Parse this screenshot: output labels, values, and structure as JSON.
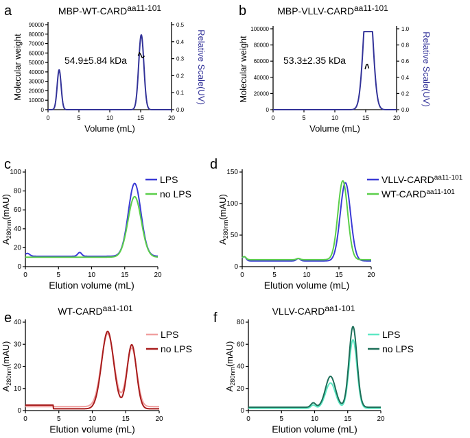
{
  "chart_data": [
    {
      "panel": "a",
      "type": "line",
      "title": "MBP-WT-CARD",
      "title_sup": "aa11-101",
      "xlabel": "Volume (mL)",
      "ylabel": "Molecular weight",
      "ylabel_right": "Relative Scale(UV)",
      "xlim": [
        0,
        20
      ],
      "ylim": [
        0,
        90000
      ],
      "ylim_right": [
        0,
        0.5
      ],
      "xticks": [
        0,
        5,
        10,
        15,
        20
      ],
      "yticks": [
        0,
        10000,
        20000,
        30000,
        40000,
        50000,
        60000,
        70000,
        80000,
        90000
      ],
      "yticks_right": [
        0.0,
        0.1,
        0.2,
        0.3,
        0.4,
        0.5
      ],
      "yticks_right_labels": [
        "0.0",
        "0.1",
        "0.2",
        "0.3",
        "0.4",
        "0.5"
      ],
      "annotation": "54.9±5.84 kDa",
      "series": [
        {
          "name": "UV",
          "color": "#333399",
          "axis": "right",
          "peaks": [
            {
              "center": 1.8,
              "height": 0.234,
              "width": 0.32
            },
            {
              "center": 15.1,
              "height": 0.44,
              "width": 0.42
            }
          ]
        },
        {
          "name": "MW",
          "color": "#000000",
          "axis": "left",
          "x": [
            14.6,
            14.8,
            15.0,
            15.2,
            15.4,
            15.6
          ],
          "y": [
            57000,
            60500,
            58500,
            55500,
            55000,
            57000
          ]
        }
      ]
    },
    {
      "panel": "b",
      "type": "line",
      "title": "MBP-VLLV-CARD",
      "title_sup": "aa11-101",
      "xlabel": "Volume (mL)",
      "ylabel": "Molecular weight",
      "ylabel_right": "Relative Scale(UV)",
      "xlim": [
        0,
        20
      ],
      "ylim": [
        0,
        100000
      ],
      "ylim_right": [
        0,
        1.0
      ],
      "xticks": [
        0,
        5,
        10,
        15,
        20
      ],
      "yticks": [
        0,
        20000,
        40000,
        60000,
        80000,
        100000
      ],
      "yticks_right": [
        0.0,
        0.2,
        0.4,
        0.6,
        0.8,
        1.0
      ],
      "yticks_right_labels": [
        "0.0",
        "0.2",
        "0.4",
        "0.6",
        "0.8",
        "1.0"
      ],
      "annotation": "53.3±2.35 kDa",
      "series": [
        {
          "name": "UV",
          "color": "#333399",
          "axis": "right",
          "peaks": [
            {
              "center": 15.4,
              "height": 1.6,
              "width": 0.7
            }
          ],
          "clip": 0.965
        },
        {
          "name": "MW",
          "color": "#000000",
          "axis": "left",
          "x": [
            14.9,
            15.1,
            15.3,
            15.5
          ],
          "y": [
            50000,
            55500,
            56000,
            51000
          ]
        }
      ]
    },
    {
      "panel": "c",
      "type": "line",
      "title": "",
      "title_sup": "",
      "xlabel": "Elution volume (mL)",
      "ylabel": "A",
      "ylabel_sub": "280nm",
      "ylabel_rest": "(mAU)",
      "xlim": [
        0,
        20
      ],
      "ylim": [
        0,
        100
      ],
      "xticks": [
        0,
        5,
        10,
        15,
        20
      ],
      "yticks": [
        0,
        20,
        40,
        60,
        80,
        100
      ],
      "legend": [
        "LPS",
        "no LPS"
      ],
      "series": [
        {
          "name": "LPS",
          "color": "#3b3bd6",
          "base": 11,
          "peaks": [
            {
              "center": 0.3,
              "height": 3,
              "width": 0.35
            },
            {
              "center": 8.2,
              "height": 4,
              "width": 0.3
            },
            {
              "center": 16.5,
              "height": 77,
              "width": 0.95
            }
          ]
        },
        {
          "name": "no LPS",
          "color": "#5bcf4a",
          "base": 10,
          "peaks": [
            {
              "center": 16.5,
              "height": 64,
              "width": 1.0
            }
          ]
        }
      ]
    },
    {
      "panel": "d",
      "type": "line",
      "title": "",
      "title_sup": "",
      "xlabel": "Elution volume (mL)",
      "ylabel": "A",
      "ylabel_sub": "280nm",
      "ylabel_rest": "(mAU)",
      "xlim": [
        0,
        20
      ],
      "ylim": [
        0,
        150
      ],
      "xticks": [
        0,
        5,
        10,
        15,
        20
      ],
      "yticks": [
        0,
        50,
        100,
        150
      ],
      "legend": [
        "VLLV-CARD",
        "WT-CARD"
      ],
      "legend_sup": [
        "aa11-101",
        "aa11-101"
      ],
      "series": [
        {
          "name": "VLLV-CARD",
          "color": "#3b3bd6",
          "base": 9,
          "peaks": [
            {
              "center": 0.3,
              "height": 7,
              "width": 0.3
            },
            {
              "center": 8.7,
              "height": 4,
              "width": 0.3
            },
            {
              "center": 16.0,
              "height": 124,
              "width": 0.8
            }
          ]
        },
        {
          "name": "WT-CARD",
          "color": "#5bcf4a",
          "base": 11,
          "peaks": [
            {
              "center": 0.3,
              "height": 5,
              "width": 0.3
            },
            {
              "center": 8.7,
              "height": 2,
              "width": 0.3
            },
            {
              "center": 15.6,
              "height": 125,
              "width": 0.75
            }
          ]
        }
      ]
    },
    {
      "panel": "e",
      "type": "line",
      "title": "WT-CARD",
      "title_sup": "aa1-101",
      "xlabel": "Elution volume (mL)",
      "ylabel": "A",
      "ylabel_sub": "280nm",
      "ylabel_rest": "(mAU)",
      "xlim": [
        0,
        20
      ],
      "ylim": [
        0,
        40
      ],
      "xticks": [
        0,
        5,
        10,
        15,
        20
      ],
      "yticks": [
        0,
        10,
        20,
        30,
        40
      ],
      "legend": [
        "LPS",
        "no LPS"
      ],
      "series": [
        {
          "name": "LPS",
          "color": "#f0a0a0",
          "base": 1.8,
          "peaks": [
            {
              "center": 12.3,
              "height": 33,
              "width": 0.95
            },
            {
              "center": 15.9,
              "height": 26.5,
              "width": 0.75
            }
          ]
        },
        {
          "name": "no LPS",
          "color": "#a81c1c",
          "base": 0.8,
          "peaks": [
            {
              "center": 12.3,
              "height": 35,
              "width": 0.9
            },
            {
              "center": 15.9,
              "height": 29,
              "width": 0.7
            }
          ],
          "step": {
            "until": 4.2,
            "value": 2.5
          }
        }
      ]
    },
    {
      "panel": "f",
      "type": "line",
      "title": "VLLV-CARD",
      "title_sup": "aa1-101",
      "xlabel": "Elution volume (mL)",
      "ylabel": "A",
      "ylabel_sub": "280nm",
      "ylabel_rest": "(mAU)",
      "xlim": [
        0,
        20
      ],
      "ylim": [
        0,
        80
      ],
      "xticks": [
        0,
        5,
        10,
        15,
        20
      ],
      "yticks": [
        0,
        20,
        40,
        60,
        80
      ],
      "legend": [
        "LPS",
        "no LPS"
      ],
      "series": [
        {
          "name": "LPS",
          "color": "#5ee8c4",
          "base": 2,
          "peaks": [
            {
              "center": 9.8,
              "height": 3,
              "width": 0.35
            },
            {
              "center": 12.4,
              "height": 23,
              "width": 0.75
            },
            {
              "center": 15.8,
              "height": 62,
              "width": 0.6
            }
          ]
        },
        {
          "name": "no LPS",
          "color": "#1c6e58",
          "base": 3,
          "peaks": [
            {
              "center": 9.8,
              "height": 4,
              "width": 0.35
            },
            {
              "center": 12.4,
              "height": 28,
              "width": 0.75
            },
            {
              "center": 15.8,
              "height": 73,
              "width": 0.6
            }
          ]
        }
      ]
    }
  ]
}
